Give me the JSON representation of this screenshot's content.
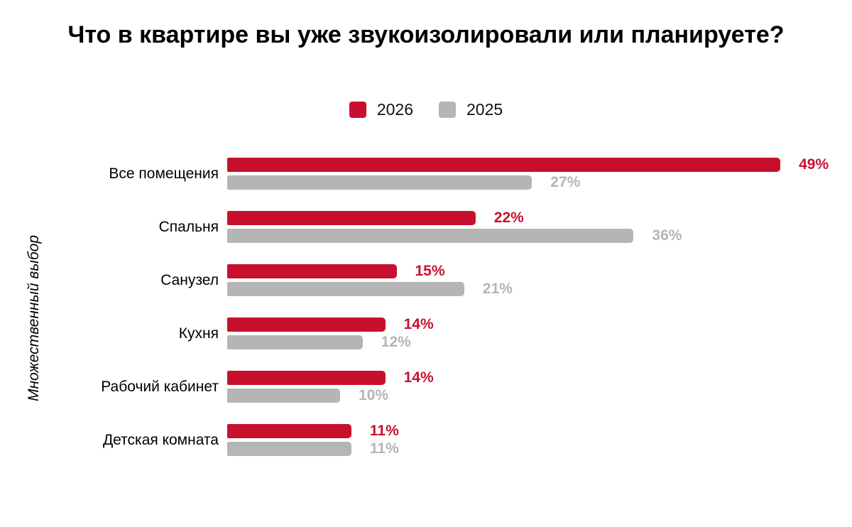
{
  "chart_data": {
    "type": "bar",
    "orientation": "horizontal",
    "title": "Что в квартире вы уже звукоизолировали или планируете?",
    "ylabel": "Множественный выбор",
    "categories": [
      "Все помещения",
      "Спальня",
      "Санузел",
      "Кухня",
      "Рабочий кабинет",
      "Детская комната"
    ],
    "series": [
      {
        "name": "2026",
        "color": "#C8102E",
        "values": [
          49,
          22,
          15,
          14,
          14,
          11
        ]
      },
      {
        "name": "2025",
        "color": "#B5B5B5",
        "values": [
          27,
          36,
          21,
          12,
          10,
          11
        ]
      }
    ],
    "value_suffix": "%",
    "data_labels": true,
    "grid": false,
    "axis_ticks_visible": false,
    "legend_position": "top-center",
    "xlim": [
      0,
      49
    ],
    "background": "#FFFFFF",
    "text_color": "#000000"
  }
}
